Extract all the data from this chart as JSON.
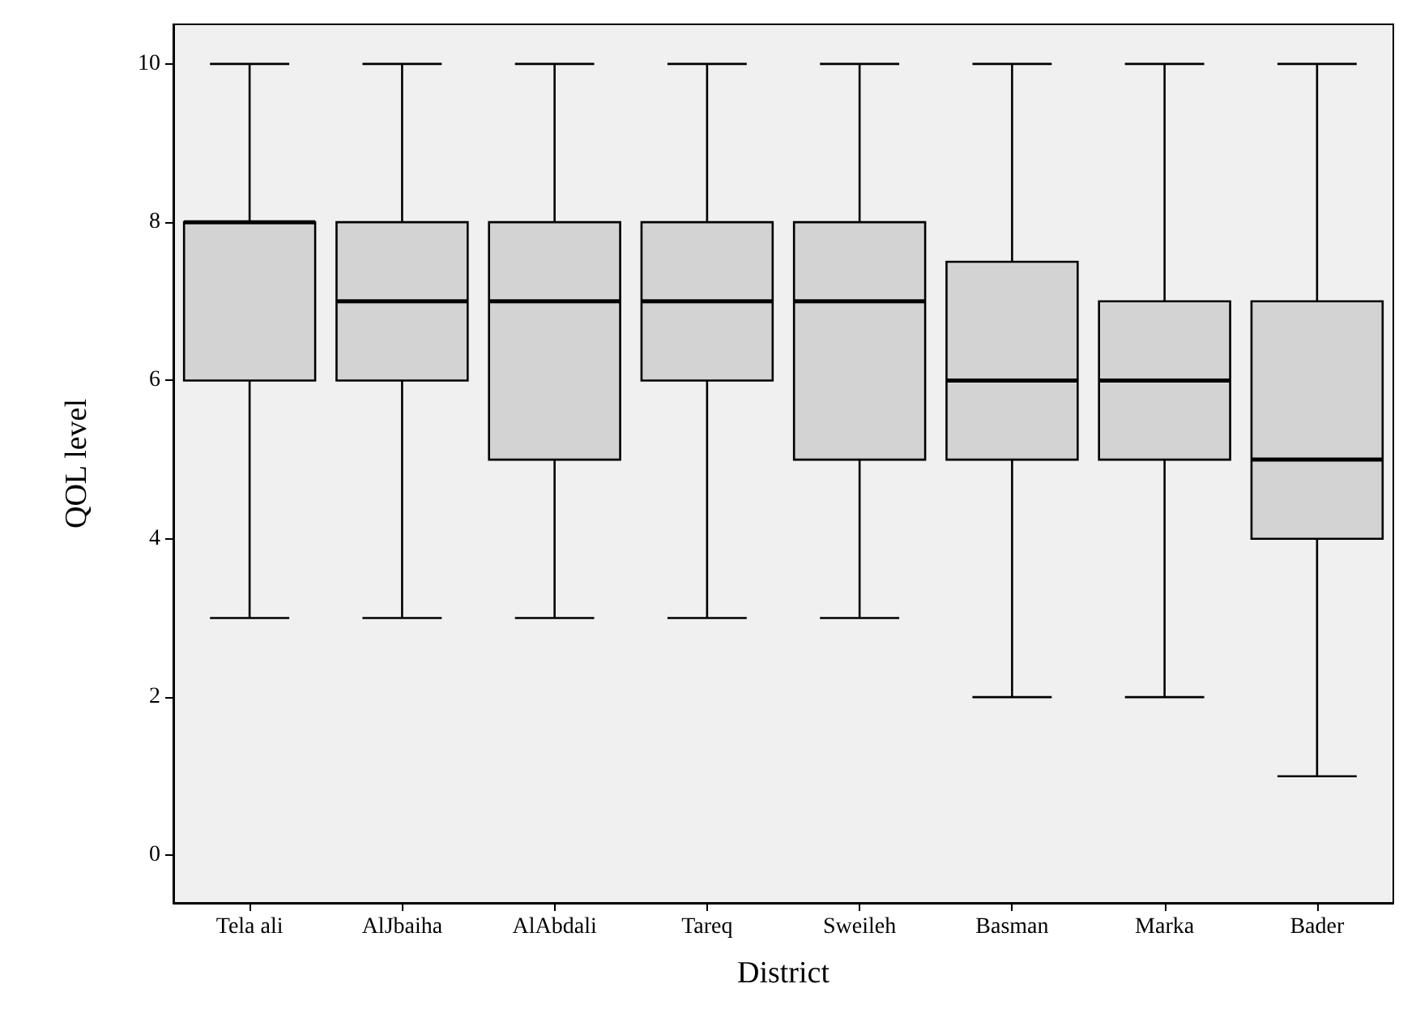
{
  "chart_data": {
    "type": "box",
    "xlabel": "District",
    "ylabel": "QOL level",
    "categories": [
      "Tela ali",
      "AlJbaiha",
      "AlAbdali",
      "Tareq",
      "Sweileh",
      "Basman",
      "Marka",
      "Bader"
    ],
    "series": [
      {
        "color": "#d3d3d3",
        "boxes": [
          {
            "low": 3,
            "q1": 6,
            "median": 8,
            "q3": 8,
            "high": 10
          },
          {
            "low": 3,
            "q1": 6,
            "median": 7,
            "q3": 8,
            "high": 10
          },
          {
            "low": 3,
            "q1": 5,
            "median": 7,
            "q3": 8,
            "high": 10
          },
          {
            "low": 3,
            "q1": 6,
            "median": 7,
            "q3": 8,
            "high": 10
          },
          {
            "low": 3,
            "q1": 5,
            "median": 7,
            "q3": 8,
            "high": 10
          },
          {
            "low": 2,
            "q1": 5,
            "median": 6,
            "q3": 7.5,
            "high": 10
          },
          {
            "low": 2,
            "q1": 5,
            "median": 6,
            "q3": 7,
            "high": 10
          },
          {
            "low": 1,
            "q1": 4,
            "median": 5,
            "q3": 7,
            "high": 10
          }
        ]
      }
    ],
    "ylim": [
      -0.6,
      10.5
    ],
    "yticks": [
      0,
      2,
      4,
      6,
      8,
      10
    ]
  }
}
